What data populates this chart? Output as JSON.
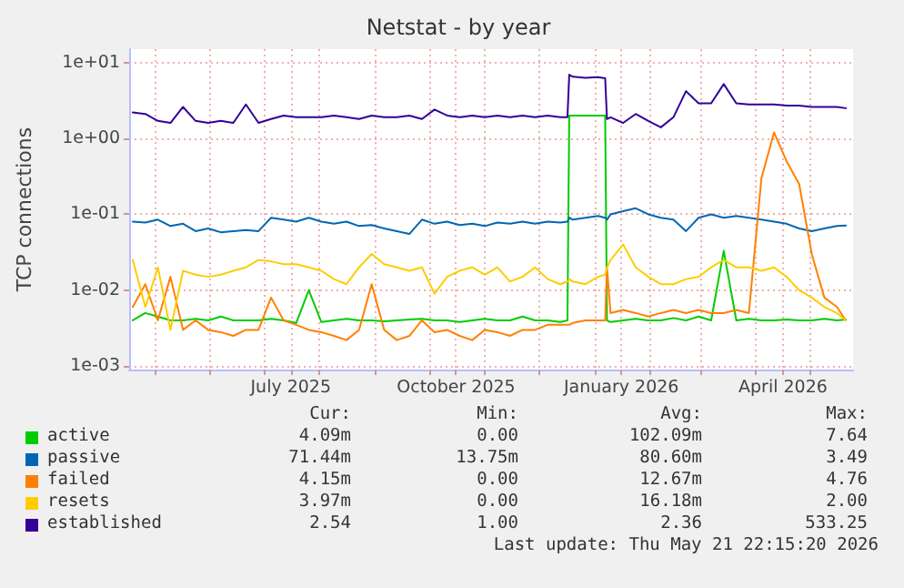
{
  "chart_data": {
    "type": "line",
    "title": "Netstat - by year",
    "ylabel": "TCP connections",
    "x": [
      "2025-04-19",
      "2025-04-26",
      "2025-05-03",
      "2025-05-10",
      "2025-05-17",
      "2025-05-24",
      "2025-05-31",
      "2025-06-07",
      "2025-06-14",
      "2025-06-21",
      "2025-06-28",
      "2025-07-05",
      "2025-07-12",
      "2025-07-19",
      "2025-07-26",
      "2025-08-02",
      "2025-08-09",
      "2025-08-16",
      "2025-08-23",
      "2025-08-30",
      "2025-09-06",
      "2025-09-13",
      "2025-09-20",
      "2025-09-27",
      "2025-10-04",
      "2025-10-11",
      "2025-10-18",
      "2025-10-25",
      "2025-11-01",
      "2025-11-08",
      "2025-11-15",
      "2025-11-22",
      "2025-11-29",
      "2025-12-06",
      "2025-12-13",
      "2025-12-17",
      "2025-12-18",
      "2025-12-20",
      "2025-12-27",
      "2026-01-03",
      "2026-01-07",
      "2026-01-08",
      "2026-01-10",
      "2026-01-17",
      "2026-01-24",
      "2026-01-31",
      "2026-02-07",
      "2026-02-14",
      "2026-02-21",
      "2026-02-28",
      "2026-03-07",
      "2026-03-14",
      "2026-03-21",
      "2026-03-28",
      "2026-04-04",
      "2026-04-11",
      "2026-04-18",
      "2026-04-25",
      "2026-05-02",
      "2026-05-09",
      "2026-05-16",
      "2026-05-21"
    ],
    "series": [
      {
        "name": "active",
        "color": "#00cc00",
        "values": [
          0.004,
          0.005,
          0.0045,
          0.004,
          0.004,
          0.0042,
          0.004,
          0.0045,
          0.004,
          0.004,
          0.004,
          0.0042,
          0.004,
          0.0037,
          0.01,
          0.0038,
          0.004,
          0.0042,
          0.004,
          0.004,
          0.0039,
          0.004,
          0.0041,
          0.0042,
          0.004,
          0.004,
          0.0038,
          0.004,
          0.0042,
          0.004,
          0.004,
          0.0045,
          0.004,
          0.004,
          0.0038,
          0.004,
          2.0,
          2.0,
          2.0,
          2.0,
          2.0,
          0.004,
          0.0038,
          0.004,
          0.0042,
          0.004,
          0.004,
          0.0043,
          0.004,
          0.0045,
          0.004,
          0.033,
          0.004,
          0.0042,
          0.004,
          0.004,
          0.0041,
          0.004,
          0.004,
          0.0042,
          0.004,
          0.0041
        ]
      },
      {
        "name": "passive",
        "color": "#0066b3",
        "values": [
          0.08,
          0.078,
          0.085,
          0.07,
          0.075,
          0.06,
          0.065,
          0.058,
          0.06,
          0.062,
          0.06,
          0.09,
          0.085,
          0.08,
          0.09,
          0.08,
          0.075,
          0.08,
          0.07,
          0.072,
          0.065,
          0.06,
          0.055,
          0.085,
          0.075,
          0.08,
          0.072,
          0.075,
          0.07,
          0.078,
          0.075,
          0.08,
          0.075,
          0.08,
          0.078,
          0.08,
          0.09,
          0.085,
          0.09,
          0.095,
          0.09,
          0.085,
          0.1,
          0.11,
          0.12,
          0.1,
          0.09,
          0.085,
          0.06,
          0.09,
          0.1,
          0.09,
          0.095,
          0.09,
          0.085,
          0.08,
          0.075,
          0.065,
          0.06,
          0.065,
          0.07,
          0.071
        ]
      },
      {
        "name": "failed",
        "color": "#ff8000",
        "values": [
          0.006,
          0.012,
          0.004,
          0.015,
          0.003,
          0.004,
          0.003,
          0.0028,
          0.0025,
          0.003,
          0.003,
          0.008,
          0.004,
          0.0035,
          0.003,
          0.0028,
          0.0025,
          0.0022,
          0.003,
          0.012,
          0.003,
          0.0022,
          0.0025,
          0.004,
          0.0028,
          0.003,
          0.0025,
          0.0022,
          0.003,
          0.0028,
          0.0025,
          0.003,
          0.003,
          0.0035,
          0.0035,
          0.0035,
          0.0035,
          0.0037,
          0.004,
          0.004,
          0.004,
          0.02,
          0.005,
          0.0055,
          0.005,
          0.0045,
          0.005,
          0.0055,
          0.005,
          0.0055,
          0.005,
          0.005,
          0.0055,
          0.005,
          0.3,
          1.2,
          0.5,
          0.25,
          0.03,
          0.008,
          0.006,
          0.004
        ]
      },
      {
        "name": "resets",
        "color": "#ffcc00",
        "values": [
          0.025,
          0.006,
          0.02,
          0.003,
          0.018,
          0.016,
          0.015,
          0.016,
          0.018,
          0.02,
          0.025,
          0.024,
          0.022,
          0.022,
          0.02,
          0.018,
          0.014,
          0.012,
          0.02,
          0.03,
          0.022,
          0.02,
          0.018,
          0.02,
          0.009,
          0.015,
          0.018,
          0.02,
          0.016,
          0.02,
          0.013,
          0.015,
          0.02,
          0.014,
          0.012,
          0.013,
          0.014,
          0.013,
          0.012,
          0.015,
          0.016,
          0.02,
          0.025,
          0.04,
          0.02,
          0.015,
          0.012,
          0.012,
          0.014,
          0.015,
          0.02,
          0.025,
          0.02,
          0.02,
          0.018,
          0.02,
          0.015,
          0.01,
          0.008,
          0.006,
          0.005,
          0.004
        ]
      },
      {
        "name": "established",
        "color": "#330099",
        "values": [
          2.2,
          2.1,
          1.7,
          1.6,
          2.6,
          1.7,
          1.6,
          1.7,
          1.6,
          2.8,
          1.6,
          1.8,
          2.0,
          1.9,
          1.9,
          1.9,
          2.0,
          1.9,
          1.8,
          2.0,
          1.9,
          1.9,
          2.0,
          1.8,
          2.4,
          2.0,
          1.9,
          2.0,
          1.9,
          2.0,
          1.9,
          2.0,
          1.9,
          2.0,
          1.9,
          1.9,
          6.9,
          6.5,
          6.3,
          6.4,
          6.2,
          1.8,
          1.9,
          1.6,
          2.1,
          1.7,
          1.4,
          1.9,
          4.2,
          2.9,
          2.9,
          5.2,
          2.9,
          2.8,
          2.8,
          2.8,
          2.7,
          2.7,
          2.6,
          2.6,
          2.6,
          2.5
        ]
      }
    ],
    "xlim": [
      "2025-04-17",
      "2026-05-25"
    ],
    "xticks": [
      {
        "value": "2025-05-01",
        "label": null
      },
      {
        "value": "2025-06-01",
        "label": null
      },
      {
        "value": "2025-07-01",
        "label": null
      },
      {
        "value": "2025-07-16",
        "label": "July 2025"
      },
      {
        "value": "2025-08-01",
        "label": null
      },
      {
        "value": "2025-09-01",
        "label": null
      },
      {
        "value": "2025-10-01",
        "label": null
      },
      {
        "value": "2025-10-16",
        "label": "October 2025"
      },
      {
        "value": "2025-11-01",
        "label": null
      },
      {
        "value": "2025-12-01",
        "label": null
      },
      {
        "value": "2026-01-01",
        "label": null
      },
      {
        "value": "2026-01-16",
        "label": "January 2026"
      },
      {
        "value": "2026-02-01",
        "label": null
      },
      {
        "value": "2026-03-01",
        "label": null
      },
      {
        "value": "2026-04-01",
        "label": null
      },
      {
        "value": "2026-04-16",
        "label": "April 2026"
      },
      {
        "value": "2026-05-01",
        "label": null
      }
    ],
    "ylim": [
      0.0009,
      15
    ],
    "yticks": [
      {
        "value": 0.001,
        "label": "1e-03"
      },
      {
        "value": 0.01,
        "label": "1e-02"
      },
      {
        "value": 0.1,
        "label": "1e-01"
      },
      {
        "value": 1,
        "label": "1e+00"
      },
      {
        "value": 10,
        "label": "1e+01"
      }
    ],
    "log": "y",
    "grid": true,
    "legend": "bottom",
    "marker": "none",
    "line_style": "solid",
    "annotations": [
      "Cur:",
      "Min:",
      "Avg:",
      "Max:",
      "4.09m",
      "0.00",
      "102.09m",
      "7.64",
      "71.44m",
      "13.75m",
      "80.60m",
      "3.49",
      "4.15m",
      "0.00",
      "12.67m",
      "4.76",
      "3.97m",
      "0.00",
      "16.18m",
      "2.00",
      "2.54",
      "1.00",
      "2.36",
      "533.25",
      "Last update: Thu May 21 22:15:20 2026"
    ]
  }
}
